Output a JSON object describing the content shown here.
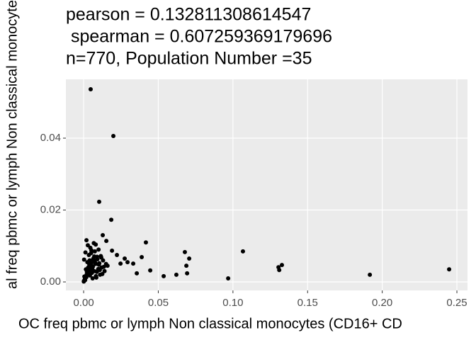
{
  "chart_data": {
    "type": "scatter",
    "title": [
      "pearson = 0.132811308614547",
      " spearman = 0.607259369179696",
      "n=770, Population Number =35"
    ],
    "x_label": "OC freq pbmc or lymph Non classical monocytes (CD16+ CD",
    "y_label": "al freq pbmc or lymph Non classical monocyte",
    "xlim": [
      -0.0119,
      0.2571
    ],
    "ylim": [
      -0.00236,
      0.05636
    ],
    "xticks": [
      {
        "value": 0,
        "label": "0.00"
      },
      {
        "value": 0.05,
        "label": "0.05"
      },
      {
        "value": 0.1,
        "label": "0.10"
      },
      {
        "value": 0.15,
        "label": "0.15"
      },
      {
        "value": 0.2,
        "label": "0.20"
      },
      {
        "value": 0.25,
        "label": "0.25"
      }
    ],
    "yticks": [
      {
        "value": 0,
        "label": "0.00"
      },
      {
        "value": 0.02,
        "label": "0.02"
      },
      {
        "value": 0.04,
        "label": "0.04"
      }
    ],
    "grid": true,
    "color": "#000000",
    "x": [
      0.0047,
      0.0199,
      0.0104,
      0.0185,
      0.0417,
      0.0678,
      0.1067,
      0.0707,
      0.0688,
      0.0693,
      0.1305,
      0.131,
      0.1328,
      0.0968,
      0.0536,
      0.0621,
      0.1917,
      0.2448,
      0.0446,
      0.0389,
      0.0332,
      0.0356,
      0.0275,
      0.0294,
      0.0247,
      0.0128,
      0.0019,
      0.0081,
      0.0152,
      0.019,
      0.0223,
      0.001,
      0.002,
      0.003,
      0.004,
      0.005,
      0.006,
      0.007,
      0.008,
      0.009,
      0.01,
      0.011,
      0.012,
      0.013,
      0.014,
      0.015,
      0.016,
      0.0005,
      0.0015,
      0.0025,
      0.0035,
      0.0045,
      0.0055,
      0.0065,
      0.0075,
      0.0085,
      0.0095,
      0.0105,
      0.0115,
      0.0125,
      0.0135,
      0.0003,
      0.0012,
      0.0028,
      0.0042,
      0.0058,
      0.0072,
      0.0088,
      0.0102,
      0.0118,
      0.0008,
      0.0022,
      0.0038,
      0.0052,
      0.0068,
      0.0082,
      0.0098,
      0.0002,
      0.0018,
      0.0032,
      0.0048,
      0.0062,
      0.0078,
      0.0092,
      0.0108,
      0.0001,
      0.0011,
      0.0021,
      0.0031,
      0.0041,
      0.0051,
      0.0061,
      0.0071
    ],
    "values": [
      0.0536,
      0.0406,
      0.0223,
      0.0173,
      0.011,
      0.0083,
      0.0085,
      0.0065,
      0.0045,
      0.0024,
      0.0041,
      0.0033,
      0.0047,
      0.001,
      0.0016,
      0.002,
      0.002,
      0.0035,
      0.0032,
      0.0069,
      0.0051,
      0.0024,
      0.0065,
      0.0055,
      0.0051,
      0.013,
      0.0116,
      0.0104,
      0.0114,
      0.0087,
      0.0075,
      0.0005,
      0.002,
      0.004,
      0.006,
      0.008,
      0.001,
      0.003,
      0.005,
      0.007,
      0.009,
      0.002,
      0.004,
      0.006,
      0.003,
      0.005,
      0.0045,
      0.0015,
      0.0035,
      0.0055,
      0.0075,
      0.0095,
      0.0025,
      0.0065,
      0.0085,
      0.0012,
      0.0032,
      0.0052,
      0.0072,
      0.0022,
      0.0042,
      0.0062,
      0.0082,
      0.0102,
      0.0018,
      0.0038,
      0.0058,
      0.0028,
      0.0048,
      0.0068,
      0.0008,
      0.0028,
      0.0048,
      0.0088,
      0.0108,
      0.0016,
      0.0036,
      0.0003,
      0.0013,
      0.0023,
      0.0033,
      0.0043,
      0.0053,
      0.0063,
      0.0033,
      0.0001,
      0.0011,
      0.0021,
      0.0031,
      0.0041,
      0.0051,
      0.0061,
      0.0071
    ]
  }
}
